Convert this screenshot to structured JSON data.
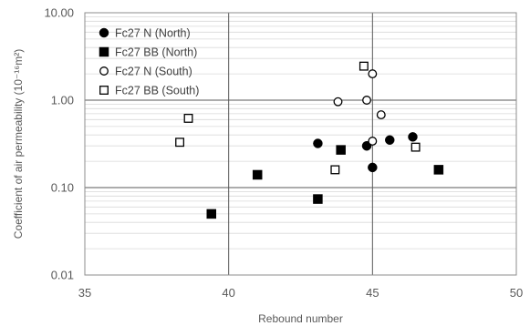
{
  "chart_data": {
    "type": "scatter",
    "xlabel": "Rebound number",
    "ylabel": "Coefficient of air permeability (10⁻¹⁶m²)",
    "xlim": [
      35,
      50
    ],
    "ylim": [
      0.01,
      10
    ],
    "y_scale": "log",
    "grid": true,
    "legend_position": "top-left",
    "x_ticks": [
      "35",
      "40",
      "45",
      "50"
    ],
    "y_ticks": [
      "0.01",
      "0.10",
      "1.00",
      "10.00"
    ],
    "series": [
      {
        "name": "Fc27 N (North)",
        "marker": "circle-filled",
        "points": [
          {
            "x": 43.1,
            "y": 0.32
          },
          {
            "x": 44.8,
            "y": 0.3
          },
          {
            "x": 45.0,
            "y": 0.17
          },
          {
            "x": 45.6,
            "y": 0.35
          },
          {
            "x": 46.4,
            "y": 0.38
          }
        ]
      },
      {
        "name": "Fc27 BB (North)",
        "marker": "square-filled",
        "points": [
          {
            "x": 39.4,
            "y": 0.05
          },
          {
            "x": 41.0,
            "y": 0.14
          },
          {
            "x": 43.1,
            "y": 0.074
          },
          {
            "x": 43.9,
            "y": 0.27
          },
          {
            "x": 47.3,
            "y": 0.16
          }
        ]
      },
      {
        "name": "Fc27 N (South)",
        "marker": "circle-open",
        "points": [
          {
            "x": 43.8,
            "y": 0.96
          },
          {
            "x": 44.8,
            "y": 1.0
          },
          {
            "x": 45.0,
            "y": 2.0
          },
          {
            "x": 45.0,
            "y": 0.34
          },
          {
            "x": 45.3,
            "y": 0.68
          }
        ]
      },
      {
        "name": "Fc27 BB (South)",
        "marker": "square-open",
        "points": [
          {
            "x": 38.3,
            "y": 0.33
          },
          {
            "x": 38.6,
            "y": 0.62
          },
          {
            "x": 43.7,
            "y": 0.16
          },
          {
            "x": 44.7,
            "y": 2.45
          },
          {
            "x": 46.5,
            "y": 0.29
          }
        ]
      }
    ],
    "colors": {
      "marker": "#000000",
      "major_grid": "#595959",
      "minor_grid": "#d9d9d9",
      "axis_text": "#595959"
    }
  }
}
